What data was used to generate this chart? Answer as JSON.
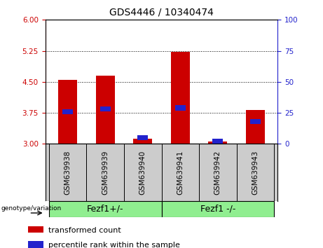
{
  "title": "GDS4446 / 10340474",
  "samples": [
    "GSM639938",
    "GSM639939",
    "GSM639940",
    "GSM639941",
    "GSM639942",
    "GSM639943"
  ],
  "transformed_counts": [
    4.55,
    4.65,
    3.12,
    5.22,
    3.05,
    3.82
  ],
  "percentile_ranks": [
    26,
    28,
    5,
    29,
    2,
    18
  ],
  "ylim_left": [
    3.0,
    6.0
  ],
  "ylim_right": [
    0,
    100
  ],
  "yticks_left": [
    3.0,
    3.75,
    4.5,
    5.25,
    6.0
  ],
  "yticks_right": [
    0,
    25,
    50,
    75,
    100
  ],
  "bar_width": 0.5,
  "red_color": "#cc0000",
  "blue_color": "#2222cc",
  "group1_label": "Fezf1+/-",
  "group2_label": "Fezf1 -/-",
  "group1_indices": [
    0,
    1,
    2
  ],
  "group2_indices": [
    3,
    4,
    5
  ],
  "group_bg_color": "#90ee90",
  "label_bg_color": "#cccccc",
  "legend_red": "transformed count",
  "legend_blue": "percentile rank within the sample",
  "genotype_label": "genotype/variation",
  "bar_base": 3.0,
  "grid_lines": [
    3.75,
    4.5,
    5.25
  ],
  "title_fontsize": 10,
  "tick_fontsize": 7.5,
  "legend_fontsize": 8,
  "group_fontsize": 9
}
